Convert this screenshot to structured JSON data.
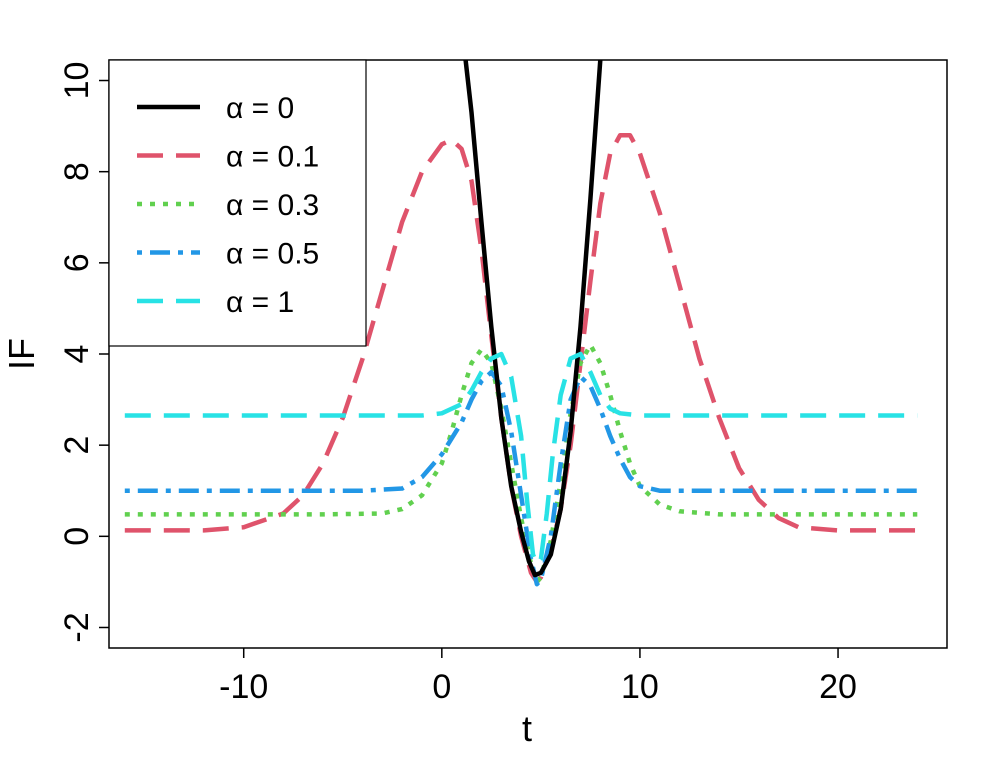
{
  "chart_data": {
    "type": "line",
    "title": "",
    "xlabel": "t",
    "ylabel": "IF",
    "xlim": [
      -16.8,
      25.5
    ],
    "ylim": [
      -2.45,
      10.45
    ],
    "xticks": [
      -10,
      0,
      10,
      20
    ],
    "yticks": [
      -2,
      0,
      2,
      4,
      6,
      8,
      10
    ],
    "grid": false,
    "legend_position": "top-left",
    "series": [
      {
        "name": "α = 0",
        "color": "#000000",
        "dash": "solid",
        "points": [
          [
            1.2,
            10.45
          ],
          [
            1.5,
            9.3
          ],
          [
            2.0,
            6.9
          ],
          [
            2.5,
            4.6
          ],
          [
            3.0,
            2.6
          ],
          [
            3.5,
            1.1
          ],
          [
            4.0,
            0.1
          ],
          [
            4.4,
            -0.55
          ],
          [
            4.7,
            -0.85
          ],
          [
            5.0,
            -0.8
          ],
          [
            5.5,
            -0.4
          ],
          [
            6.0,
            0.6
          ],
          [
            6.5,
            2.3
          ],
          [
            7.0,
            4.6
          ],
          [
            7.5,
            7.4
          ],
          [
            8.0,
            10.45
          ]
        ]
      },
      {
        "name": "α = 0.1",
        "color": "#DF536B",
        "dash": "long-dash",
        "points": [
          [
            -16,
            0.13
          ],
          [
            -12,
            0.13
          ],
          [
            -10,
            0.2
          ],
          [
            -8,
            0.5
          ],
          [
            -7,
            0.9
          ],
          [
            -6,
            1.6
          ],
          [
            -5,
            2.6
          ],
          [
            -4,
            3.9
          ],
          [
            -3,
            5.4
          ],
          [
            -2,
            6.9
          ],
          [
            -1,
            8.0
          ],
          [
            0,
            8.6
          ],
          [
            0.5,
            8.7
          ],
          [
            1,
            8.5
          ],
          [
            1.5,
            7.8
          ],
          [
            2,
            6.3
          ],
          [
            2.5,
            4.4
          ],
          [
            3,
            2.6
          ],
          [
            3.5,
            1.1
          ],
          [
            4,
            0.0
          ],
          [
            4.5,
            -0.8
          ],
          [
            4.8,
            -1.0
          ],
          [
            5,
            -0.9
          ],
          [
            5.5,
            -0.3
          ],
          [
            6,
            0.6
          ],
          [
            6.5,
            2.0
          ],
          [
            7,
            3.8
          ],
          [
            7.5,
            5.6
          ],
          [
            8,
            7.3
          ],
          [
            8.5,
            8.4
          ],
          [
            9,
            8.8
          ],
          [
            9.5,
            8.8
          ],
          [
            10,
            8.4
          ],
          [
            11,
            7.1
          ],
          [
            12,
            5.5
          ],
          [
            13,
            3.9
          ],
          [
            14,
            2.6
          ],
          [
            15,
            1.5
          ],
          [
            16,
            0.8
          ],
          [
            17,
            0.4
          ],
          [
            18,
            0.2
          ],
          [
            20,
            0.13
          ],
          [
            24,
            0.13
          ]
        ]
      },
      {
        "name": "α = 0.3",
        "color": "#61D04F",
        "dash": "dotted",
        "points": [
          [
            -16,
            0.48
          ],
          [
            -6,
            0.48
          ],
          [
            -3,
            0.5
          ],
          [
            -2,
            0.6
          ],
          [
            -1,
            0.9
          ],
          [
            0,
            1.6
          ],
          [
            0.5,
            2.3
          ],
          [
            1,
            3.1
          ],
          [
            1.5,
            3.8
          ],
          [
            2,
            4.1
          ],
          [
            2.5,
            3.8
          ],
          [
            3,
            2.8
          ],
          [
            3.5,
            1.6
          ],
          [
            4,
            0.4
          ],
          [
            4.5,
            -0.6
          ],
          [
            4.8,
            -1.0
          ],
          [
            5,
            -0.9
          ],
          [
            5.5,
            -0.1
          ],
          [
            6,
            1.2
          ],
          [
            6.5,
            2.7
          ],
          [
            7,
            3.8
          ],
          [
            7.5,
            4.2
          ],
          [
            8,
            3.8
          ],
          [
            8.5,
            3.1
          ],
          [
            9,
            2.3
          ],
          [
            9.5,
            1.6
          ],
          [
            10,
            1.1
          ],
          [
            11,
            0.7
          ],
          [
            12,
            0.55
          ],
          [
            14,
            0.48
          ],
          [
            24,
            0.48
          ]
        ]
      },
      {
        "name": "α = 0.5",
        "color": "#2297E6",
        "dash": "dot-dash",
        "points": [
          [
            -16,
            1.0
          ],
          [
            -4,
            1.0
          ],
          [
            -2,
            1.05
          ],
          [
            -1,
            1.3
          ],
          [
            0,
            1.8
          ],
          [
            1,
            2.5
          ],
          [
            1.5,
            3.0
          ],
          [
            2,
            3.4
          ],
          [
            2.5,
            3.6
          ],
          [
            3,
            3.3
          ],
          [
            3.5,
            2.3
          ],
          [
            4,
            0.9
          ],
          [
            4.5,
            -0.5
          ],
          [
            4.8,
            -1.05
          ],
          [
            5,
            -0.95
          ],
          [
            5.5,
            0.0
          ],
          [
            6,
            1.6
          ],
          [
            6.5,
            3.0
          ],
          [
            7,
            3.5
          ],
          [
            7.5,
            3.3
          ],
          [
            8,
            2.8
          ],
          [
            8.5,
            2.2
          ],
          [
            9,
            1.7
          ],
          [
            9.5,
            1.3
          ],
          [
            10,
            1.1
          ],
          [
            11,
            1.0
          ],
          [
            24,
            1.0
          ]
        ]
      },
      {
        "name": "α = 1",
        "color": "#28E2E5",
        "dash": "long-dash",
        "points": [
          [
            -16,
            2.65
          ],
          [
            -1,
            2.65
          ],
          [
            0,
            2.7
          ],
          [
            1,
            2.9
          ],
          [
            1.5,
            3.2
          ],
          [
            2,
            3.6
          ],
          [
            2.5,
            3.9
          ],
          [
            3,
            4.0
          ],
          [
            3.5,
            3.5
          ],
          [
            4,
            2.2
          ],
          [
            4.3,
            0.8
          ],
          [
            4.6,
            -0.4
          ],
          [
            4.8,
            -0.6
          ],
          [
            5.0,
            -0.5
          ],
          [
            5.3,
            0.5
          ],
          [
            5.6,
            1.8
          ],
          [
            6,
            3.1
          ],
          [
            6.5,
            3.9
          ],
          [
            7,
            4.0
          ],
          [
            7.5,
            3.6
          ],
          [
            8,
            3.1
          ],
          [
            8.5,
            2.8
          ],
          [
            9,
            2.7
          ],
          [
            10,
            2.65
          ],
          [
            24,
            2.65
          ]
        ]
      }
    ]
  }
}
